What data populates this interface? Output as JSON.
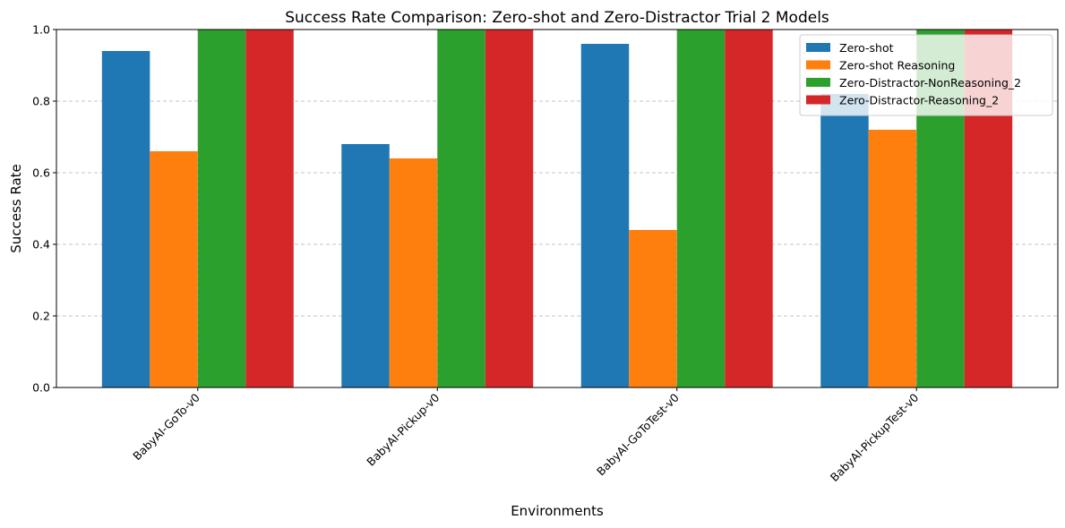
{
  "chart_data": {
    "type": "bar",
    "title": "Success Rate Comparison: Zero-shot and Zero-Distractor Trial 2 Models",
    "xlabel": "Environments",
    "ylabel": "Success Rate",
    "ylim": [
      0,
      1.0
    ],
    "yticks": [
      "0.0",
      "0.2",
      "0.4",
      "0.6",
      "0.8",
      "1.0"
    ],
    "grid": "y-dashed",
    "legend_position": "top-right",
    "categories": [
      "BabyAI-GoTo-v0",
      "BabyAI-Pickup-v0",
      "BabyAI-GoToTest-v0",
      "BabyAI-PickupTest-v0"
    ],
    "series": [
      {
        "name": "Zero-shot",
        "color": "#1f77b4",
        "values": [
          0.94,
          0.68,
          0.96,
          0.82
        ]
      },
      {
        "name": "Zero-shot Reasoning",
        "color": "#ff7f0e",
        "values": [
          0.66,
          0.64,
          0.44,
          0.72
        ]
      },
      {
        "name": "Zero-Distractor-NonReasoning_2",
        "color": "#2ca02c",
        "values": [
          1.0,
          1.0,
          1.0,
          1.0
        ]
      },
      {
        "name": "Zero-Distractor-Reasoning_2",
        "color": "#d62728",
        "values": [
          1.0,
          1.0,
          1.0,
          1.0
        ]
      }
    ]
  }
}
